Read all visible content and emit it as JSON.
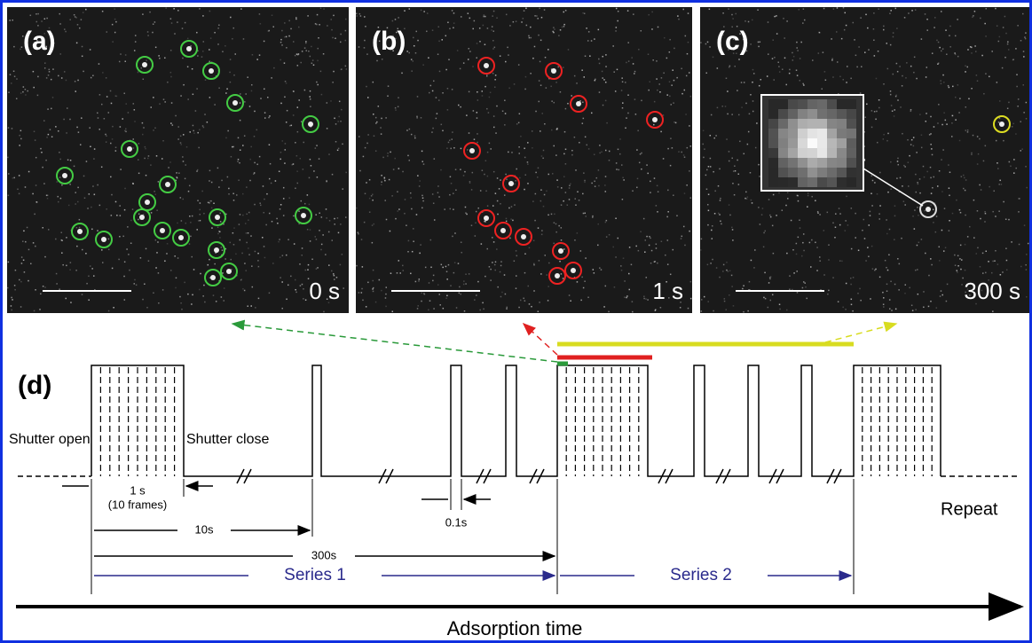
{
  "panels": [
    {
      "label": "(a)",
      "time": "0 s"
    },
    {
      "label": "(b)",
      "time": "1 s"
    },
    {
      "label": "(c)",
      "time": "300 s"
    }
  ],
  "timeline": {
    "label": "(d)",
    "shutter_open": "Shutter open",
    "shutter_close": "Shutter close",
    "frame_time": "1 s",
    "frames": "(10 frames)",
    "interval_short": "10s",
    "pulse": "0.1s",
    "interval_long": "300s",
    "series_1": "Series 1",
    "series_2": "Series 2",
    "repeat": "Repeat",
    "axis": "Adsorption time"
  }
}
